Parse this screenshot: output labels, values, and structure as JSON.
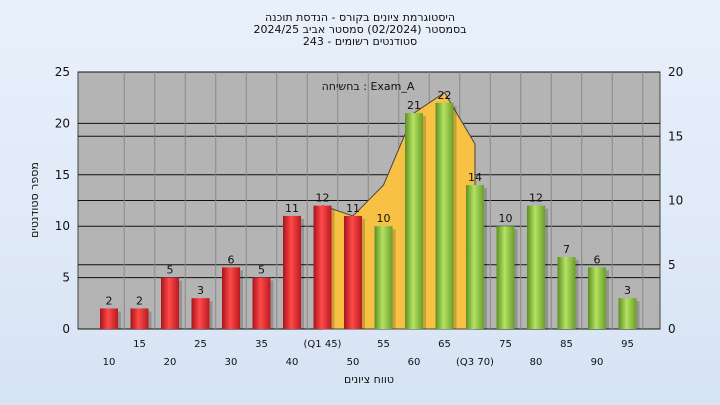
{
  "chart_data": {
    "type": "bar",
    "title": [
      "היסטוגרמת ציונים בקורס - הנדסת תוכנה",
      "בסמסטר  (02/2024)  סמסטר אביב 2024/25",
      "סטודנטים רשומים - 243"
    ],
    "annotation": "בחשיחה : Exam_A",
    "xlabel": "טווח ציונים",
    "ylabel": "מספר סטודנטים",
    "ylim": [
      0,
      25
    ],
    "yticks": [
      0,
      5,
      10,
      15,
      20,
      25
    ],
    "y2lim": [
      0,
      20
    ],
    "y2ticks": [
      0,
      5,
      10,
      15,
      20
    ],
    "categories": [
      "10",
      "15",
      "20",
      "25",
      "30",
      "35",
      "40",
      "(Q1 45)",
      "50",
      "55",
      "60",
      "65",
      "(Q3 70)",
      "75",
      "80",
      "85",
      "90",
      "95"
    ],
    "values": [
      2,
      2,
      5,
      3,
      6,
      5,
      11,
      12,
      11,
      10,
      21,
      22,
      14,
      10,
      12,
      7,
      6,
      3
    ],
    "bar_groups": [
      "red",
      "red",
      "red",
      "red",
      "red",
      "red",
      "red",
      "red",
      "red",
      "green",
      "green",
      "green",
      "green",
      "green",
      "green",
      "green",
      "green",
      "green"
    ],
    "area_series": {
      "x_index": [
        7,
        8,
        9,
        10,
        11,
        12
      ],
      "values": [
        12,
        11,
        14,
        21,
        23,
        18
      ]
    },
    "colors": {
      "red": "#e0282a",
      "green": "#8cc43c",
      "area": "#f7c244",
      "plot_bg": "#b4b4b4"
    },
    "grid": true
  }
}
